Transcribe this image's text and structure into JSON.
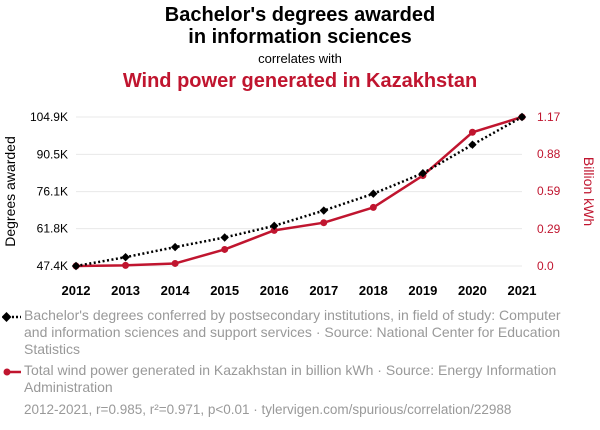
{
  "header": {
    "title_line1": "Bachelor's degrees awarded",
    "title_line2": "in information sciences",
    "connector": "correlates with",
    "title2": "Wind power generated in Kazakhstan"
  },
  "colors": {
    "series1": "#000000",
    "series2": "#c0152f",
    "grid": "#e8e8e8",
    "muted": "#999999"
  },
  "chart_data": {
    "type": "line",
    "x": [
      2012,
      2013,
      2014,
      2015,
      2016,
      2017,
      2018,
      2019,
      2020,
      2021
    ],
    "series": [
      {
        "values": [
          47400,
          50800,
          54700,
          58400,
          62900,
          68800,
          75300,
          83200,
          94200,
          104900
        ],
        "axis": "left",
        "style": "dotted",
        "marker": "diamond"
      },
      {
        "values": [
          0.0,
          0.005,
          0.02,
          0.13,
          0.28,
          0.34,
          0.46,
          0.71,
          1.05,
          1.17
        ],
        "axis": "right",
        "style": "solid",
        "marker": "circle"
      }
    ],
    "y_left": {
      "label": "Degrees awarded",
      "ticks": [
        47400,
        61800,
        76100,
        90500,
        104900
      ],
      "tick_labels": [
        "47.4K",
        "61.8K",
        "76.1K",
        "90.5K",
        "104.9K"
      ],
      "range": [
        47400,
        104900
      ]
    },
    "y_right": {
      "label": "Billion kWh",
      "ticks": [
        0.0,
        0.29,
        0.59,
        0.88,
        1.17
      ],
      "tick_labels": [
        "0.0",
        "0.29",
        "0.59",
        "0.88",
        "1.17"
      ],
      "range": [
        0,
        1.17
      ]
    },
    "x_tick_labels": [
      "2012",
      "2013",
      "2014",
      "2015",
      "2016",
      "2017",
      "2018",
      "2019",
      "2020",
      "2021"
    ],
    "grid": true
  },
  "legend": {
    "series1_text": "Bachelor's degrees conferred by postsecondary institutions, in field of study: Computer and information sciences and support services · Source: National Center for Education Statistics",
    "series2_text": "Total wind power generated in Kazakhstan in billion kWh · Source: Energy Information Administration"
  },
  "footer": "2012-2021, r=0.985, r²=0.971, p<0.01 · tylervigen.com/spurious/correlation/22988"
}
